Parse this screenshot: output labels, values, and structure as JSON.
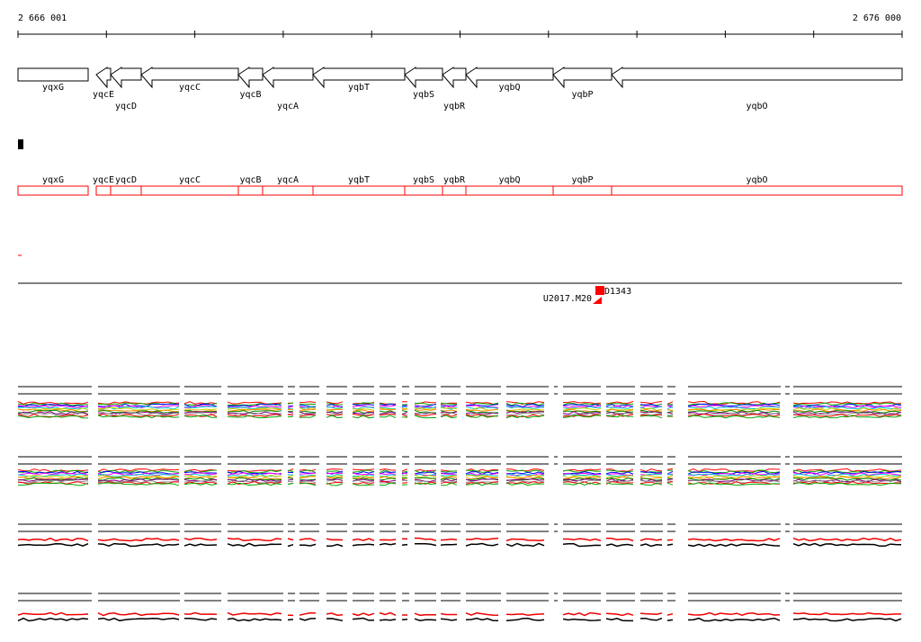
{
  "ruler": {
    "start": "2 666 001",
    "end": "2 676 000"
  },
  "genes": [
    "yqxG",
    "yqcE",
    "yqcD",
    "yqcC",
    "yqcB",
    "yqcA",
    "yqbT",
    "yqbS",
    "yqbR",
    "yqbQ",
    "yqbP",
    "yqbO"
  ],
  "markers": {
    "left": "U2017.M20",
    "right": "D1343"
  }
}
